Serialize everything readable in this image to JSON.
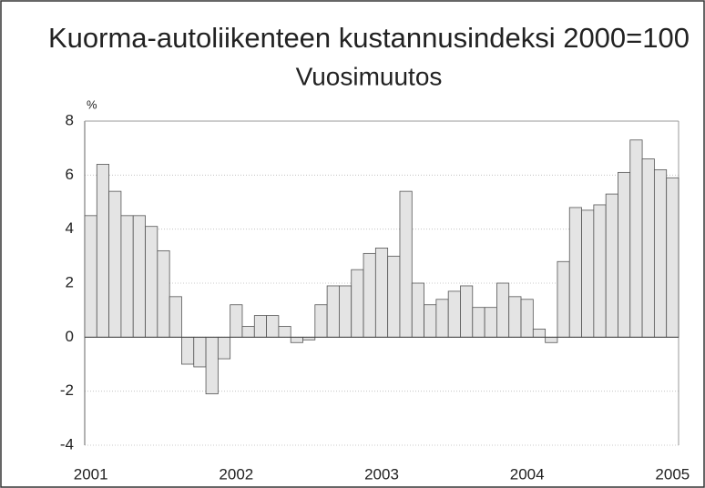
{
  "chart_data": {
    "type": "bar",
    "title": "Kuorma-autoliikenteen kustannusindeksi 2000=100",
    "subtitle": "Vuosimuutos",
    "y_label": "%",
    "categories": [
      "2001",
      null,
      null,
      null,
      null,
      null,
      null,
      null,
      null,
      null,
      null,
      null,
      "2002",
      null,
      null,
      null,
      null,
      null,
      null,
      null,
      null,
      null,
      null,
      null,
      "2003",
      null,
      null,
      null,
      null,
      null,
      null,
      null,
      null,
      null,
      null,
      null,
      "2004",
      null,
      null,
      null,
      null,
      null,
      null,
      null,
      null,
      null,
      null,
      null,
      "2005"
    ],
    "values": [
      4.5,
      6.4,
      5.4,
      4.5,
      4.5,
      4.1,
      3.2,
      1.5,
      -1.0,
      -1.1,
      -2.1,
      -0.8,
      1.2,
      0.4,
      0.8,
      0.8,
      0.4,
      -0.2,
      -0.1,
      1.2,
      1.9,
      1.9,
      2.5,
      3.1,
      3.3,
      3.0,
      5.4,
      2.0,
      1.2,
      1.4,
      1.7,
      1.9,
      1.1,
      1.1,
      2.0,
      1.5,
      1.4,
      0.3,
      -0.2,
      2.8,
      4.8,
      4.7,
      4.9,
      5.3,
      6.1,
      7.3,
      6.6,
      6.2,
      5.9
    ],
    "color": "#e4e4e4",
    "ylim": [
      -4,
      8
    ],
    "yticks": [
      -4,
      -2,
      0,
      2,
      4,
      6,
      8
    ],
    "grid": true
  }
}
